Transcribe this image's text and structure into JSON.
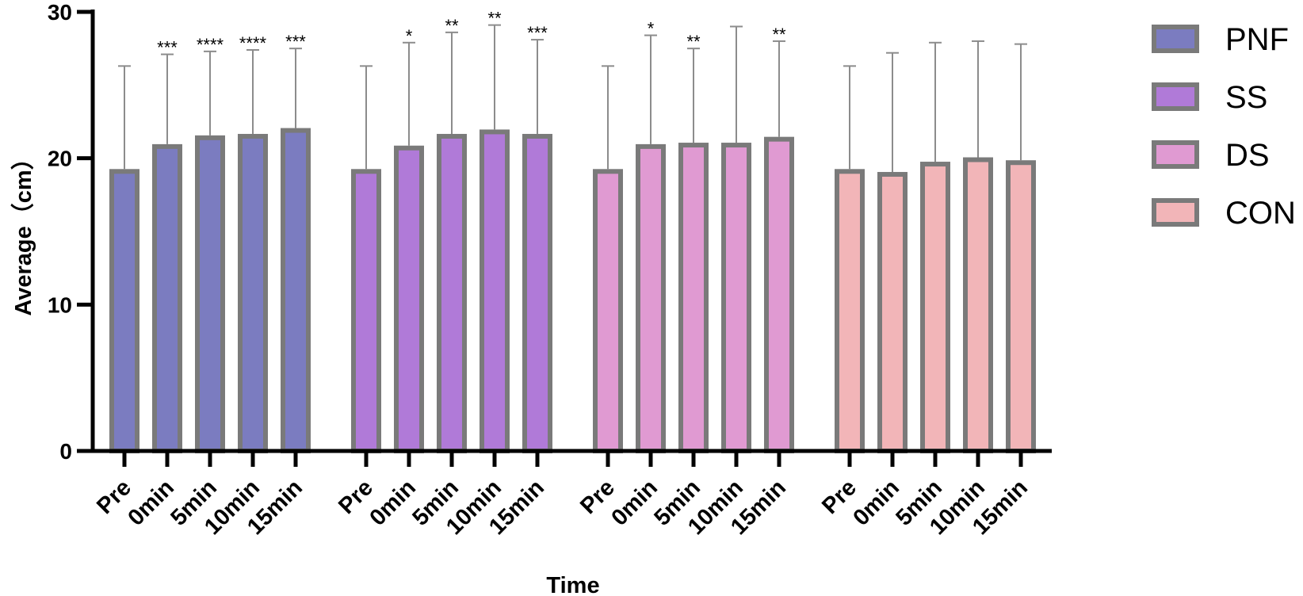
{
  "chart_data": {
    "type": "bar",
    "xlabel": "Time",
    "ylabel": "Average（cm）",
    "ylim": [
      0,
      30
    ],
    "yticks": [
      0,
      10,
      20,
      30
    ],
    "categories": [
      "Pre",
      "0min",
      "5min",
      "10min",
      "15min"
    ],
    "legend_position": "right",
    "series": [
      {
        "name": "PNF",
        "color": "#7b7cc0",
        "values": [
          19.1,
          20.8,
          21.4,
          21.5,
          21.9
        ],
        "errors": [
          7.2,
          6.3,
          5.9,
          5.9,
          5.6
        ],
        "significance": [
          "",
          "***",
          "****",
          "****",
          "***"
        ]
      },
      {
        "name": "SS",
        "color": "#b07ad8",
        "values": [
          19.1,
          20.7,
          21.5,
          21.8,
          21.5
        ],
        "errors": [
          7.2,
          7.2,
          7.1,
          7.3,
          6.6
        ],
        "significance": [
          "",
          "*",
          "**",
          "**",
          "***"
        ]
      },
      {
        "name": "DS",
        "color": "#e09ad2",
        "values": [
          19.1,
          20.8,
          20.9,
          20.9,
          21.3
        ],
        "errors": [
          7.2,
          7.6,
          6.6,
          8.1,
          6.7
        ],
        "significance": [
          "",
          "*",
          "**",
          "",
          "**"
        ]
      },
      {
        "name": "CON",
        "color": "#f2b5b8",
        "values": [
          19.1,
          18.9,
          19.6,
          19.9,
          19.7
        ],
        "errors": [
          7.2,
          8.3,
          8.3,
          8.1,
          8.1
        ],
        "significance": [
          "",
          "",
          "",
          "",
          ""
        ]
      }
    ]
  }
}
